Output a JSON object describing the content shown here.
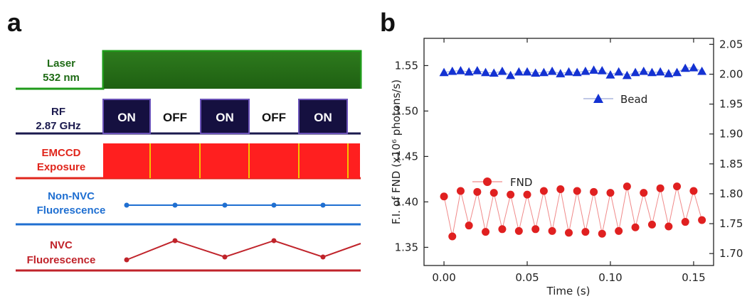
{
  "panel_a": {
    "letter": "a",
    "rows": [
      {
        "label_lines": [
          "Laser",
          "532 nm"
        ],
        "color": "#1f6b16"
      },
      {
        "label_lines": [
          "RF",
          "2.87 GHz"
        ],
        "color": "#1b1a4e"
      },
      {
        "label_lines": [
          "EMCCD",
          "Exposure"
        ],
        "color": "#e0261c"
      },
      {
        "label_lines": [
          "Non-NVC",
          "Fluorescence"
        ],
        "color": "#1f6fd1"
      },
      {
        "label_lines": [
          "NVC",
          "Fluorescence"
        ],
        "color": "#c0232a"
      }
    ],
    "rf_states": [
      "ON",
      "OFF",
      "ON",
      "OFF",
      "ON"
    ],
    "colors": {
      "laser_dark": "#2f7a1e",
      "laser_light": "#1f9a1a",
      "rf_on": "#151040",
      "rf_border": "#6a52b8",
      "emccd_fill": "#ff1f1f",
      "emccd_divider": "#f5c400",
      "nonnvc": "#1f6fd1",
      "nvc": "#c0232a"
    }
  },
  "panel_b": {
    "letter": "b"
  },
  "chart_data": {
    "type": "scatter",
    "xlabel": "Time (s)",
    "ylabel_left": "F.I. of FND (x10⁶ photons/s)",
    "xlim": [
      -0.012,
      0.162
    ],
    "ylim_left": [
      1.33,
      1.58
    ],
    "ylim_right": [
      1.68,
      2.06
    ],
    "x_ticks": [
      "0.00",
      "0.05",
      "0.10",
      "0.15"
    ],
    "x_tick_values": [
      0.0,
      0.05,
      0.1,
      0.15
    ],
    "y_ticks_left": [
      "1.35",
      "1.40",
      "1.45",
      "1.50",
      "1.55"
    ],
    "y_tick_values_left": [
      1.35,
      1.4,
      1.45,
      1.5,
      1.55
    ],
    "y_ticks_right": [
      "1.70",
      "1.75",
      "1.80",
      "1.85",
      "1.90",
      "1.95",
      "2.00",
      "2.05"
    ],
    "y_tick_values_right": [
      1.7,
      1.75,
      1.8,
      1.85,
      1.9,
      1.95,
      2.0,
      2.05
    ],
    "series": [
      {
        "name": "Bead",
        "axis": "right",
        "marker": "triangle",
        "color": "#1432d2",
        "line_color": "#9aa8d8",
        "x": [
          0.0,
          0.005,
          0.01,
          0.015,
          0.02,
          0.025,
          0.03,
          0.035,
          0.04,
          0.045,
          0.05,
          0.055,
          0.06,
          0.065,
          0.07,
          0.075,
          0.08,
          0.085,
          0.09,
          0.095,
          0.1,
          0.105,
          0.11,
          0.115,
          0.12,
          0.125,
          0.13,
          0.135,
          0.14,
          0.145,
          0.15,
          0.155
        ],
        "y": [
          2.003,
          2.005,
          2.006,
          2.004,
          2.006,
          2.003,
          2.002,
          2.005,
          1.998,
          2.004,
          2.004,
          2.002,
          2.003,
          2.005,
          2.001,
          2.004,
          2.003,
          2.005,
          2.007,
          2.006,
          1.999,
          2.004,
          1.998,
          2.003,
          2.005,
          2.003,
          2.004,
          2.001,
          2.003,
          2.01,
          2.011,
          2.005
        ]
      },
      {
        "name": "FND",
        "axis": "left",
        "marker": "circle",
        "color": "#e02020",
        "line_color": "#f08a8a",
        "x": [
          0.0,
          0.005,
          0.01,
          0.015,
          0.02,
          0.025,
          0.03,
          0.035,
          0.04,
          0.045,
          0.05,
          0.055,
          0.06,
          0.065,
          0.07,
          0.075,
          0.08,
          0.085,
          0.09,
          0.095,
          0.1,
          0.105,
          0.11,
          0.115,
          0.12,
          0.125,
          0.13,
          0.135,
          0.14,
          0.145,
          0.15,
          0.155
        ],
        "y": [
          1.406,
          1.362,
          1.412,
          1.374,
          1.411,
          1.367,
          1.41,
          1.37,
          1.408,
          1.368,
          1.408,
          1.37,
          1.412,
          1.368,
          1.414,
          1.366,
          1.412,
          1.367,
          1.411,
          1.365,
          1.41,
          1.368,
          1.417,
          1.372,
          1.41,
          1.375,
          1.415,
          1.373,
          1.417,
          1.378,
          1.412,
          1.38
        ]
      }
    ]
  }
}
